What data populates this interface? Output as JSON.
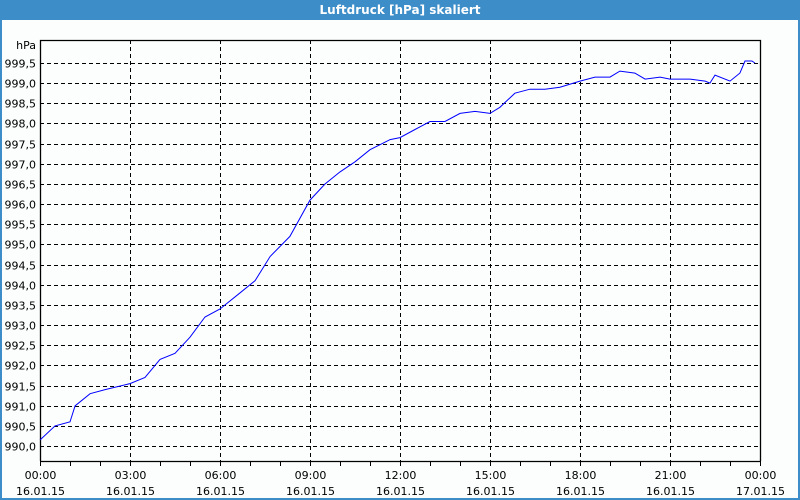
{
  "window": {
    "title": "Luftdruck [hPa] skaliert"
  },
  "chart_data": {
    "type": "line",
    "title": "Luftdruck [hPa] skaliert",
    "ylabel": "hPa",
    "xlabel": "",
    "x_unit": "hours since 16.01.15 00:00",
    "xlim": [
      0,
      24
    ],
    "ylim": [
      989.63,
      1000.07
    ],
    "grid": true,
    "line_color": "#0000ff",
    "yticks": [
      990.0,
      990.5,
      991.0,
      991.5,
      992.0,
      992.5,
      993.0,
      993.5,
      994.0,
      994.5,
      995.0,
      995.5,
      996.0,
      996.5,
      997.0,
      997.5,
      998.0,
      998.5,
      999.0,
      999.5
    ],
    "ytick_labels": [
      "990,0",
      "990,5",
      "991,0",
      "991,5",
      "992,0",
      "992,5",
      "993,0",
      "993,5",
      "994,0",
      "994,5",
      "995,0",
      "995,5",
      "996,0",
      "996,5",
      "997,0",
      "997,5",
      "998,0",
      "998,5",
      "999,0",
      "999,5"
    ],
    "xticks": [
      {
        "x": 0,
        "time": "00:00",
        "date": "16.01.15"
      },
      {
        "x": 3,
        "time": "03:00",
        "date": "16.01.15"
      },
      {
        "x": 6,
        "time": "06:00",
        "date": "16.01.15"
      },
      {
        "x": 9,
        "time": "09:00",
        "date": "16.01.15"
      },
      {
        "x": 12,
        "time": "12:00",
        "date": "16.01.15"
      },
      {
        "x": 15,
        "time": "15:00",
        "date": "16.01.15"
      },
      {
        "x": 18,
        "time": "18:00",
        "date": "16.01.15"
      },
      {
        "x": 21,
        "time": "21:00",
        "date": "16.01.15"
      },
      {
        "x": 24,
        "time": "00:00",
        "date": "17.01.15"
      }
    ],
    "series": [
      {
        "x": [
          0,
          0.5,
          1,
          1.17,
          1.67,
          2.17,
          3,
          3.5,
          4,
          4.5,
          5,
          5.5,
          6,
          6.67,
          7.17,
          7.67,
          8.33,
          9,
          9.5,
          10,
          10.5,
          11,
          11.67,
          12,
          12.5,
          13,
          13.5,
          14,
          14.5,
          15,
          15.33,
          15.83,
          16.33,
          16.83,
          17.33,
          18,
          18.5,
          19,
          19.33,
          19.83,
          20.17,
          20.67,
          21,
          21.67,
          22.17,
          22.33,
          22.5,
          23,
          23.33,
          23.5,
          23.73,
          23.83
        ],
        "y": [
          990.15,
          990.5,
          990.6,
          991.0,
          991.3,
          991.4,
          991.55,
          991.7,
          992.15,
          992.3,
          992.7,
          993.2,
          993.4,
          993.8,
          994.1,
          994.7,
          995.2,
          996.1,
          996.5,
          996.8,
          997.05,
          997.35,
          997.6,
          997.65,
          997.85,
          998.05,
          998.05,
          998.25,
          998.3,
          998.25,
          998.4,
          998.75,
          998.85,
          998.85,
          998.9,
          999.05,
          999.15,
          999.15,
          999.3,
          999.25,
          999.1,
          999.15,
          999.1,
          999.1,
          999.05,
          999.0,
          999.2,
          999.05,
          999.25,
          999.55,
          999.55,
          999.5
        ]
      }
    ]
  }
}
